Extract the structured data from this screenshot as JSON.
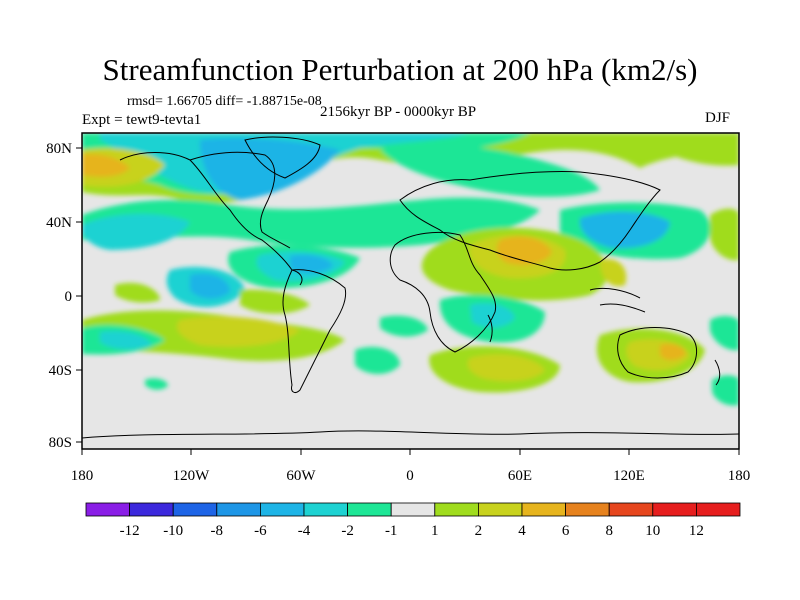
{
  "title": "Streamfunction Perturbation at 200 hPa (km2/s)",
  "stats": "rmsd= 1.66705 diff= -1.88715e-08",
  "experiment": "Expt = tewt9-tevta1",
  "period": "2156kyr BP - 0000kyr BP",
  "season": "DJF",
  "axes": {
    "lat_labels": [
      "80N",
      "40N",
      "0",
      "40S",
      "80S"
    ],
    "lon_labels": [
      "180",
      "120W",
      "60W",
      "0",
      "60E",
      "120E",
      "180"
    ]
  },
  "colorbar": {
    "labels": [
      "-12",
      "-10",
      "-8",
      "-6",
      "-4",
      "-2",
      "-1",
      "1",
      "2",
      "4",
      "6",
      "8",
      "10",
      "12"
    ],
    "colors": [
      "#8a1ee6",
      "#3c28dc",
      "#1e64e6",
      "#1e96e6",
      "#1eb4e6",
      "#1ed2d2",
      "#1ee696",
      "#e6e6e6",
      "#a0dc1e",
      "#c8d21e",
      "#e6b41e",
      "#e6821e",
      "#e6461e",
      "#e61e1e"
    ]
  }
}
